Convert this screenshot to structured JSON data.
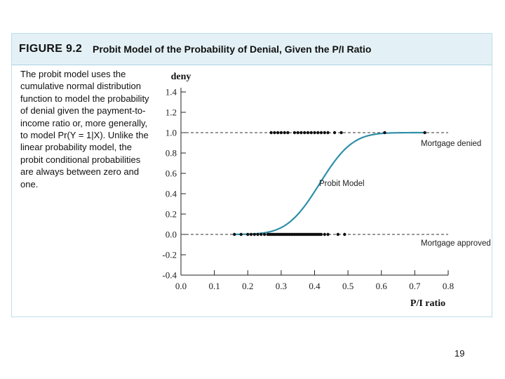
{
  "figure": {
    "number": "FIGURE 9.2",
    "title": "Probit Model of the Probability of Denial, Given the P/I Ratio",
    "caption": "The probit model uses the cumulative normal distribution function to model the probability of denial given the payment-to-income ratio or, more generally, to model Pr(Y = 1|X). Unlike the linear probability model, the probit conditional probabilities are always between zero and one."
  },
  "chart_data": {
    "type": "scatter",
    "title": "",
    "xlabel": "P/I ratio",
    "ylabel": "deny",
    "xlim": [
      0.0,
      0.8
    ],
    "ylim": [
      -0.4,
      1.4
    ],
    "x_ticks": [
      "0.0",
      "0.1",
      "0.2",
      "0.3",
      "0.4",
      "0.5",
      "0.6",
      "0.7",
      "0.8"
    ],
    "y_ticks": [
      "-0.4",
      "-0.2",
      "0.0",
      "0.2",
      "0.4",
      "0.6",
      "0.8",
      "1.0",
      "1.2",
      "1.4"
    ],
    "grid": false,
    "reference_lines": [
      {
        "y": 1.0,
        "style": "dashed",
        "label": "Mortgage denied"
      },
      {
        "y": 0.0,
        "style": "dashed",
        "label": "Mortgage approved"
      }
    ],
    "series": [
      {
        "name": "Mortgage denied",
        "y": 1.0,
        "x": [
          0.27,
          0.28,
          0.29,
          0.3,
          0.31,
          0.32,
          0.34,
          0.35,
          0.36,
          0.37,
          0.38,
          0.39,
          0.4,
          0.41,
          0.42,
          0.43,
          0.44,
          0.46,
          0.48,
          0.61,
          0.73
        ]
      },
      {
        "name": "Mortgage approved",
        "y": 0.0,
        "x": [
          0.16,
          0.18,
          0.2,
          0.21,
          0.22,
          0.23,
          0.24,
          0.25,
          0.26,
          0.265,
          0.27,
          0.275,
          0.28,
          0.285,
          0.29,
          0.295,
          0.3,
          0.305,
          0.31,
          0.315,
          0.32,
          0.325,
          0.33,
          0.335,
          0.34,
          0.345,
          0.35,
          0.355,
          0.36,
          0.365,
          0.37,
          0.375,
          0.38,
          0.385,
          0.39,
          0.395,
          0.4,
          0.405,
          0.41,
          0.415,
          0.42,
          0.43,
          0.44,
          0.47,
          0.49
        ]
      },
      {
        "name": "Probit Model",
        "kind": "curve",
        "color": "#2f8fa8",
        "intercept": -5.4,
        "slope": 13.0,
        "x_range": [
          0.16,
          0.73
        ]
      }
    ]
  },
  "page": {
    "number": "19"
  }
}
